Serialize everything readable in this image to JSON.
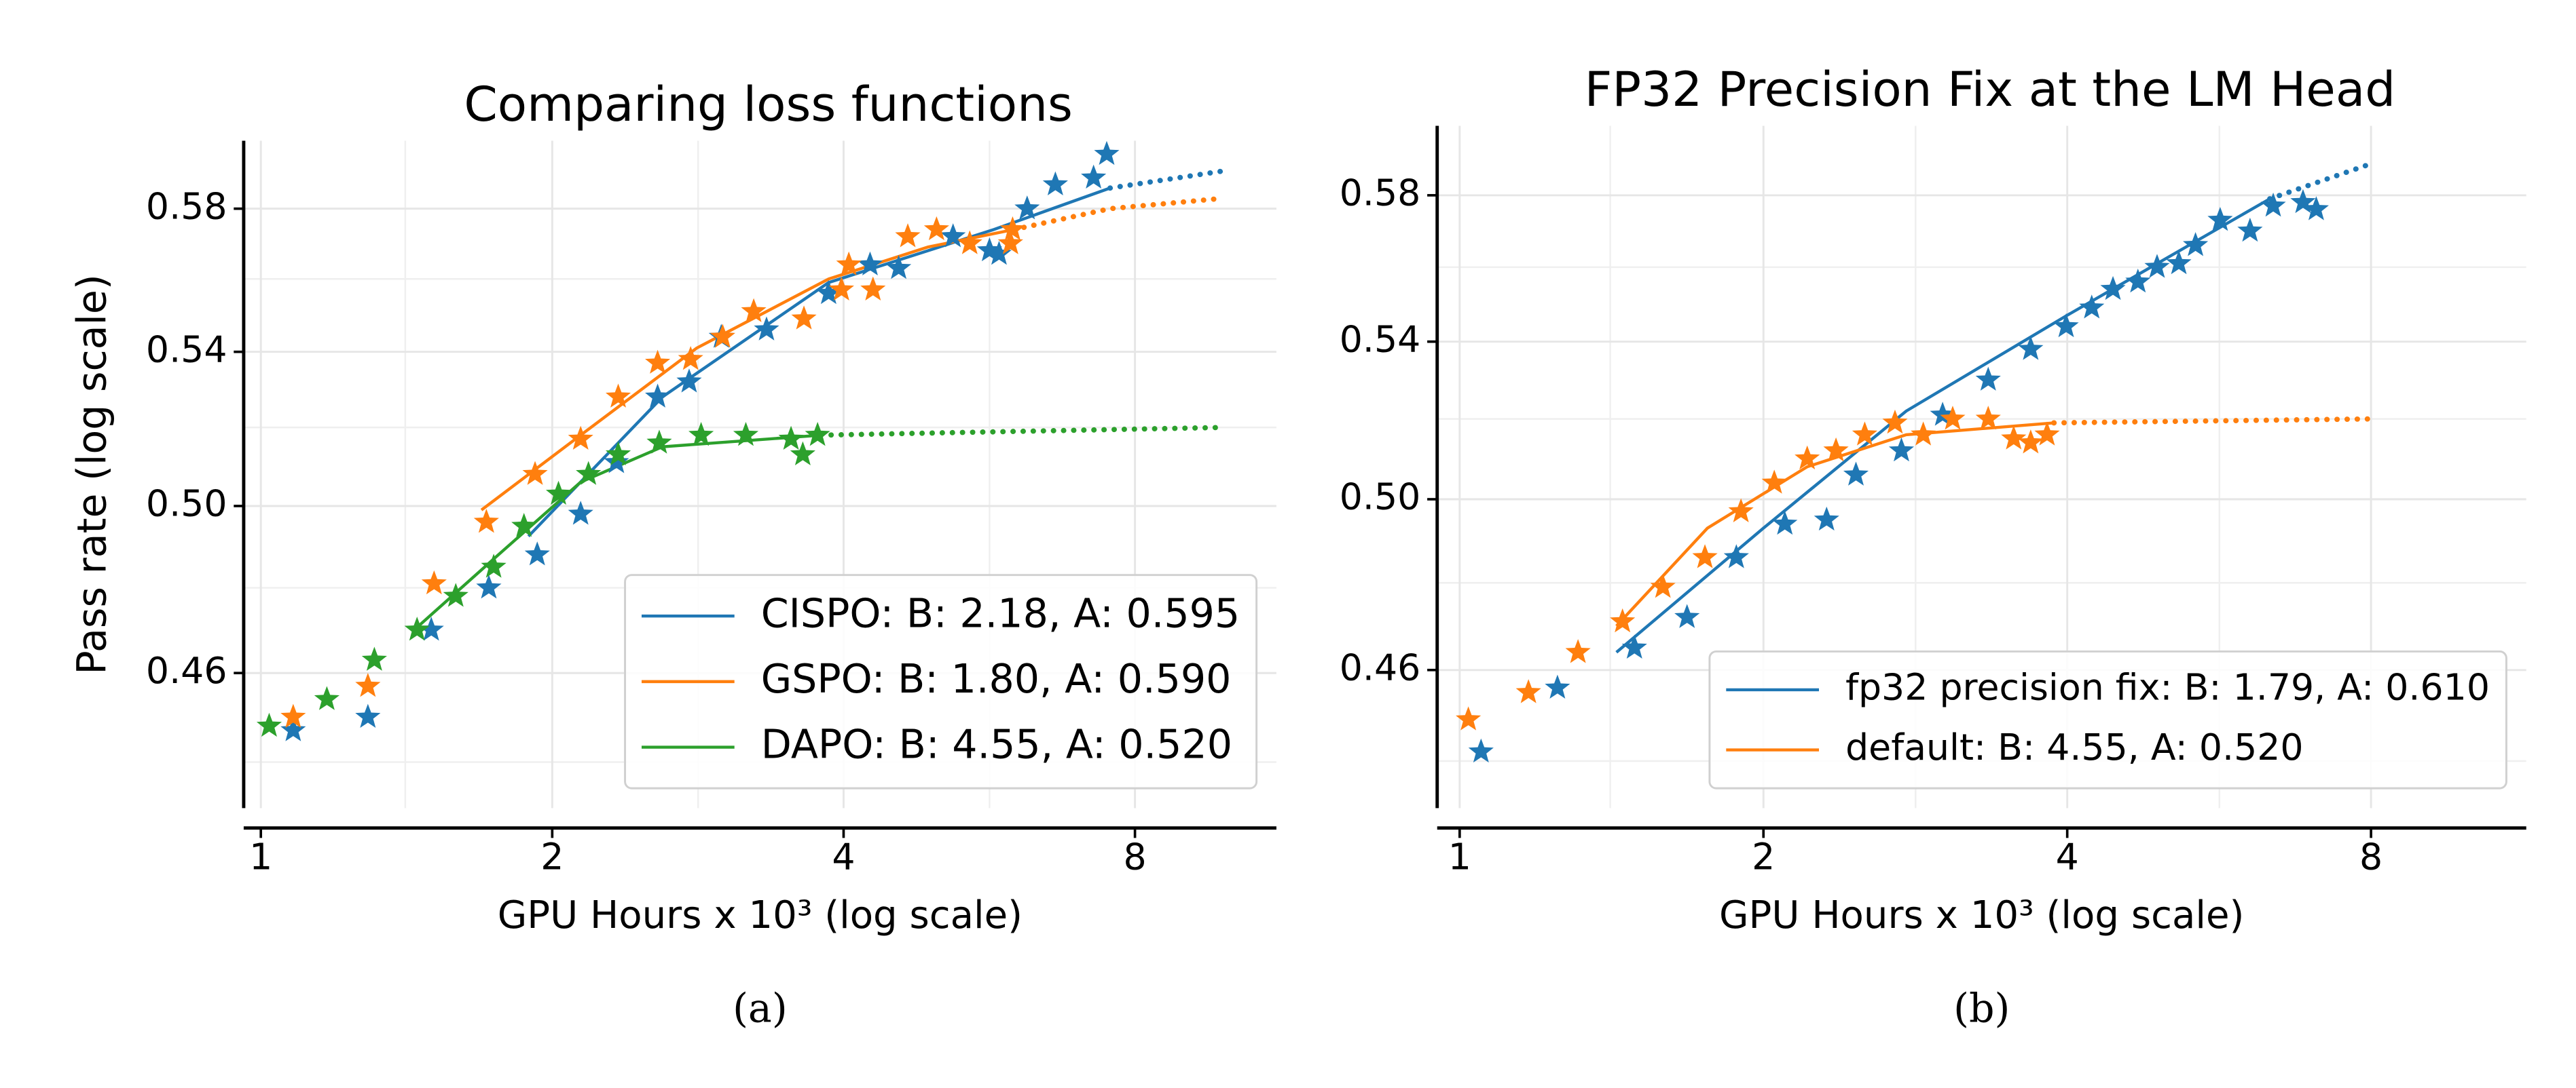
{
  "chart_data": [
    {
      "type": "scatter",
      "title": "Comparing loss functions",
      "xlabel": "GPU Hours x 10³ (log scale)",
      "ylabel": "Pass rate (log scale)",
      "caption": "(a)",
      "xscale": "log",
      "yscale": "log",
      "grid": true,
      "legend": "lower right",
      "xlim": [
        0.96,
        11.2
      ],
      "ylim": [
        0.43,
        0.6
      ],
      "xticks": [
        1,
        2,
        4,
        8
      ],
      "xminorticks": [
        1.41,
        2.83,
        5.66
      ],
      "yticks": [
        {
          "value": 0.46,
          "label": "0.46"
        },
        {
          "value": 0.5,
          "label": "0.50"
        },
        {
          "value": 0.54,
          "label": "0.54"
        },
        {
          "value": 0.58,
          "label": "0.58"
        }
      ],
      "yminorticks": [
        0.44,
        0.48,
        0.52,
        0.56
      ],
      "series": [
        {
          "name": "CISPO: B: 2.18, A: 0.595",
          "color": "#1f77b4",
          "points": {
            "x": [
              1.08,
              1.29,
              1.5,
              1.72,
              1.93,
              2.14,
              2.33,
              2.57,
              2.77,
              2.99,
              3.33,
              3.86,
              4.26,
              4.56,
              5.19,
              5.66,
              5.79,
              6.19,
              6.62,
              7.25,
              7.48
            ],
            "y": [
              0.447,
              0.45,
              0.47,
              0.48,
              0.488,
              0.498,
              0.511,
              0.528,
              0.532,
              0.544,
              0.546,
              0.556,
              0.564,
              0.563,
              0.572,
              0.568,
              0.567,
              0.58,
              0.587,
              0.589,
              0.596
            ]
          },
          "fit": {
            "x": [
              1.89,
              2.6,
              3.86,
              5.72,
              7.54
            ],
            "y": [
              0.4925,
              0.528,
              0.559,
              0.574,
              0.586
            ]
          },
          "extrapolation": {
            "x": [
              7.54,
              9.86
            ],
            "y": [
              0.586,
              0.591
            ]
          }
        },
        {
          "name": "GSPO: B: 1.80, A: 0.590",
          "color": "#ff7f0e",
          "points": {
            "x": [
              1.08,
              1.29,
              1.51,
              1.71,
              1.92,
              2.14,
              2.34,
              2.57,
              2.78,
              3.0,
              3.23,
              3.64,
              3.98,
              4.05,
              4.29,
              4.66,
              4.99,
              5.4,
              5.95,
              5.98
            ],
            "y": [
              0.45,
              0.457,
              0.481,
              0.496,
              0.508,
              0.517,
              0.528,
              0.537,
              0.538,
              0.544,
              0.551,
              0.549,
              0.557,
              0.564,
              0.557,
              0.572,
              0.574,
              0.57,
              0.57,
              0.574
            ]
          },
          "fit": {
            "x": [
              1.69,
              2.14,
              2.82,
              3.86,
              4.89,
              6.0
            ],
            "y": [
              0.499,
              0.518,
              0.541,
              0.56,
              0.569,
              0.574
            ]
          },
          "extrapolation": {
            "x": [
              6.0,
              7.54,
              9.86
            ],
            "y": [
              0.574,
              0.58,
              0.583
            ]
          }
        },
        {
          "name": "DAPO: B: 4.55, A: 0.520",
          "color": "#2ca02c",
          "points": {
            "x": [
              1.02,
              1.17,
              1.31,
              1.45,
              1.59,
              1.74,
              1.87,
              2.03,
              2.18,
              2.34,
              2.58,
              2.85,
              3.17,
              3.53,
              3.63,
              3.76
            ],
            "y": [
              0.448,
              0.454,
              0.463,
              0.47,
              0.478,
              0.485,
              0.495,
              0.503,
              0.508,
              0.513,
              0.516,
              0.518,
              0.518,
              0.517,
              0.513,
              0.518
            ]
          },
          "fit": {
            "x": [
              1.44,
              1.76,
              2.14,
              2.6,
              3.79
            ],
            "y": [
              0.47,
              0.488,
              0.506,
              0.515,
              0.518
            ]
          },
          "extrapolation": {
            "x": [
              3.79,
              9.86
            ],
            "y": [
              0.518,
              0.52
            ]
          }
        }
      ]
    },
    {
      "type": "scatter",
      "title": "FP32 Precision Fix at the LM Head",
      "xlabel": "GPU Hours x 10³ (log scale)",
      "caption": "(b)",
      "xscale": "log",
      "yscale": "log",
      "grid": true,
      "legend": "lower right",
      "xlim": [
        0.95,
        11.4
      ],
      "ylim": [
        0.43,
        0.6
      ],
      "xticks": [
        1,
        2,
        4,
        8
      ],
      "xminorticks": [
        1.41,
        2.83,
        5.66
      ],
      "yticks": [
        {
          "value": 0.46,
          "label": "0.46"
        },
        {
          "value": 0.5,
          "label": "0.50"
        },
        {
          "value": 0.54,
          "label": "0.54"
        },
        {
          "value": 0.58,
          "label": "0.58"
        }
      ],
      "yminorticks": [
        0.44,
        0.48,
        0.52,
        0.56
      ],
      "series": [
        {
          "name": "fp32 precision fix: B: 1.79, A: 0.610",
          "color": "#1f77b4",
          "points": {
            "x": [
              1.05,
              1.25,
              1.49,
              1.68,
              1.88,
              2.1,
              2.31,
              2.47,
              2.74,
              3.01,
              3.34,
              3.68,
              3.99,
              4.23,
              4.44,
              4.7,
              4.91,
              5.16,
              5.36,
              5.67,
              6.07,
              6.4,
              6.85,
              7.06
            ],
            "y": [
              0.442,
              0.456,
              0.465,
              0.472,
              0.486,
              0.494,
              0.495,
              0.506,
              0.512,
              0.521,
              0.53,
              0.538,
              0.544,
              0.549,
              0.554,
              0.556,
              0.56,
              0.561,
              0.566,
              0.573,
              0.57,
              0.577,
              0.578,
              0.576
            ]
          },
          "fit": {
            "x": [
              1.43,
              2.0,
              2.77,
              4.0,
              6.35
            ],
            "y": [
              0.464,
              0.493,
              0.522,
              0.547,
              0.579
            ]
          },
          "extrapolation": {
            "x": [
              6.35,
              8.0
            ],
            "y": [
              0.579,
              0.589
            ]
          }
        },
        {
          "name": "default: B: 4.55, A: 0.520",
          "color": "#ff7f0e",
          "points": {
            "x": [
              1.02,
              1.17,
              1.31,
              1.45,
              1.59,
              1.75,
              1.9,
              2.05,
              2.21,
              2.36,
              2.52,
              2.7,
              2.88,
              3.08,
              3.34,
              3.54,
              3.68,
              3.82
            ],
            "y": [
              0.449,
              0.455,
              0.464,
              0.471,
              0.479,
              0.486,
              0.497,
              0.504,
              0.51,
              0.512,
              0.516,
              0.519,
              0.516,
              0.52,
              0.52,
              0.515,
              0.514,
              0.516
            ]
          },
          "fit": {
            "x": [
              1.43,
              1.76,
              2.21,
              2.77,
              3.88
            ],
            "y": [
              0.47,
              0.493,
              0.508,
              0.516,
              0.519
            ]
          },
          "extrapolation": {
            "x": [
              3.88,
              8.0
            ],
            "y": [
              0.519,
              0.52
            ]
          }
        }
      ]
    }
  ]
}
